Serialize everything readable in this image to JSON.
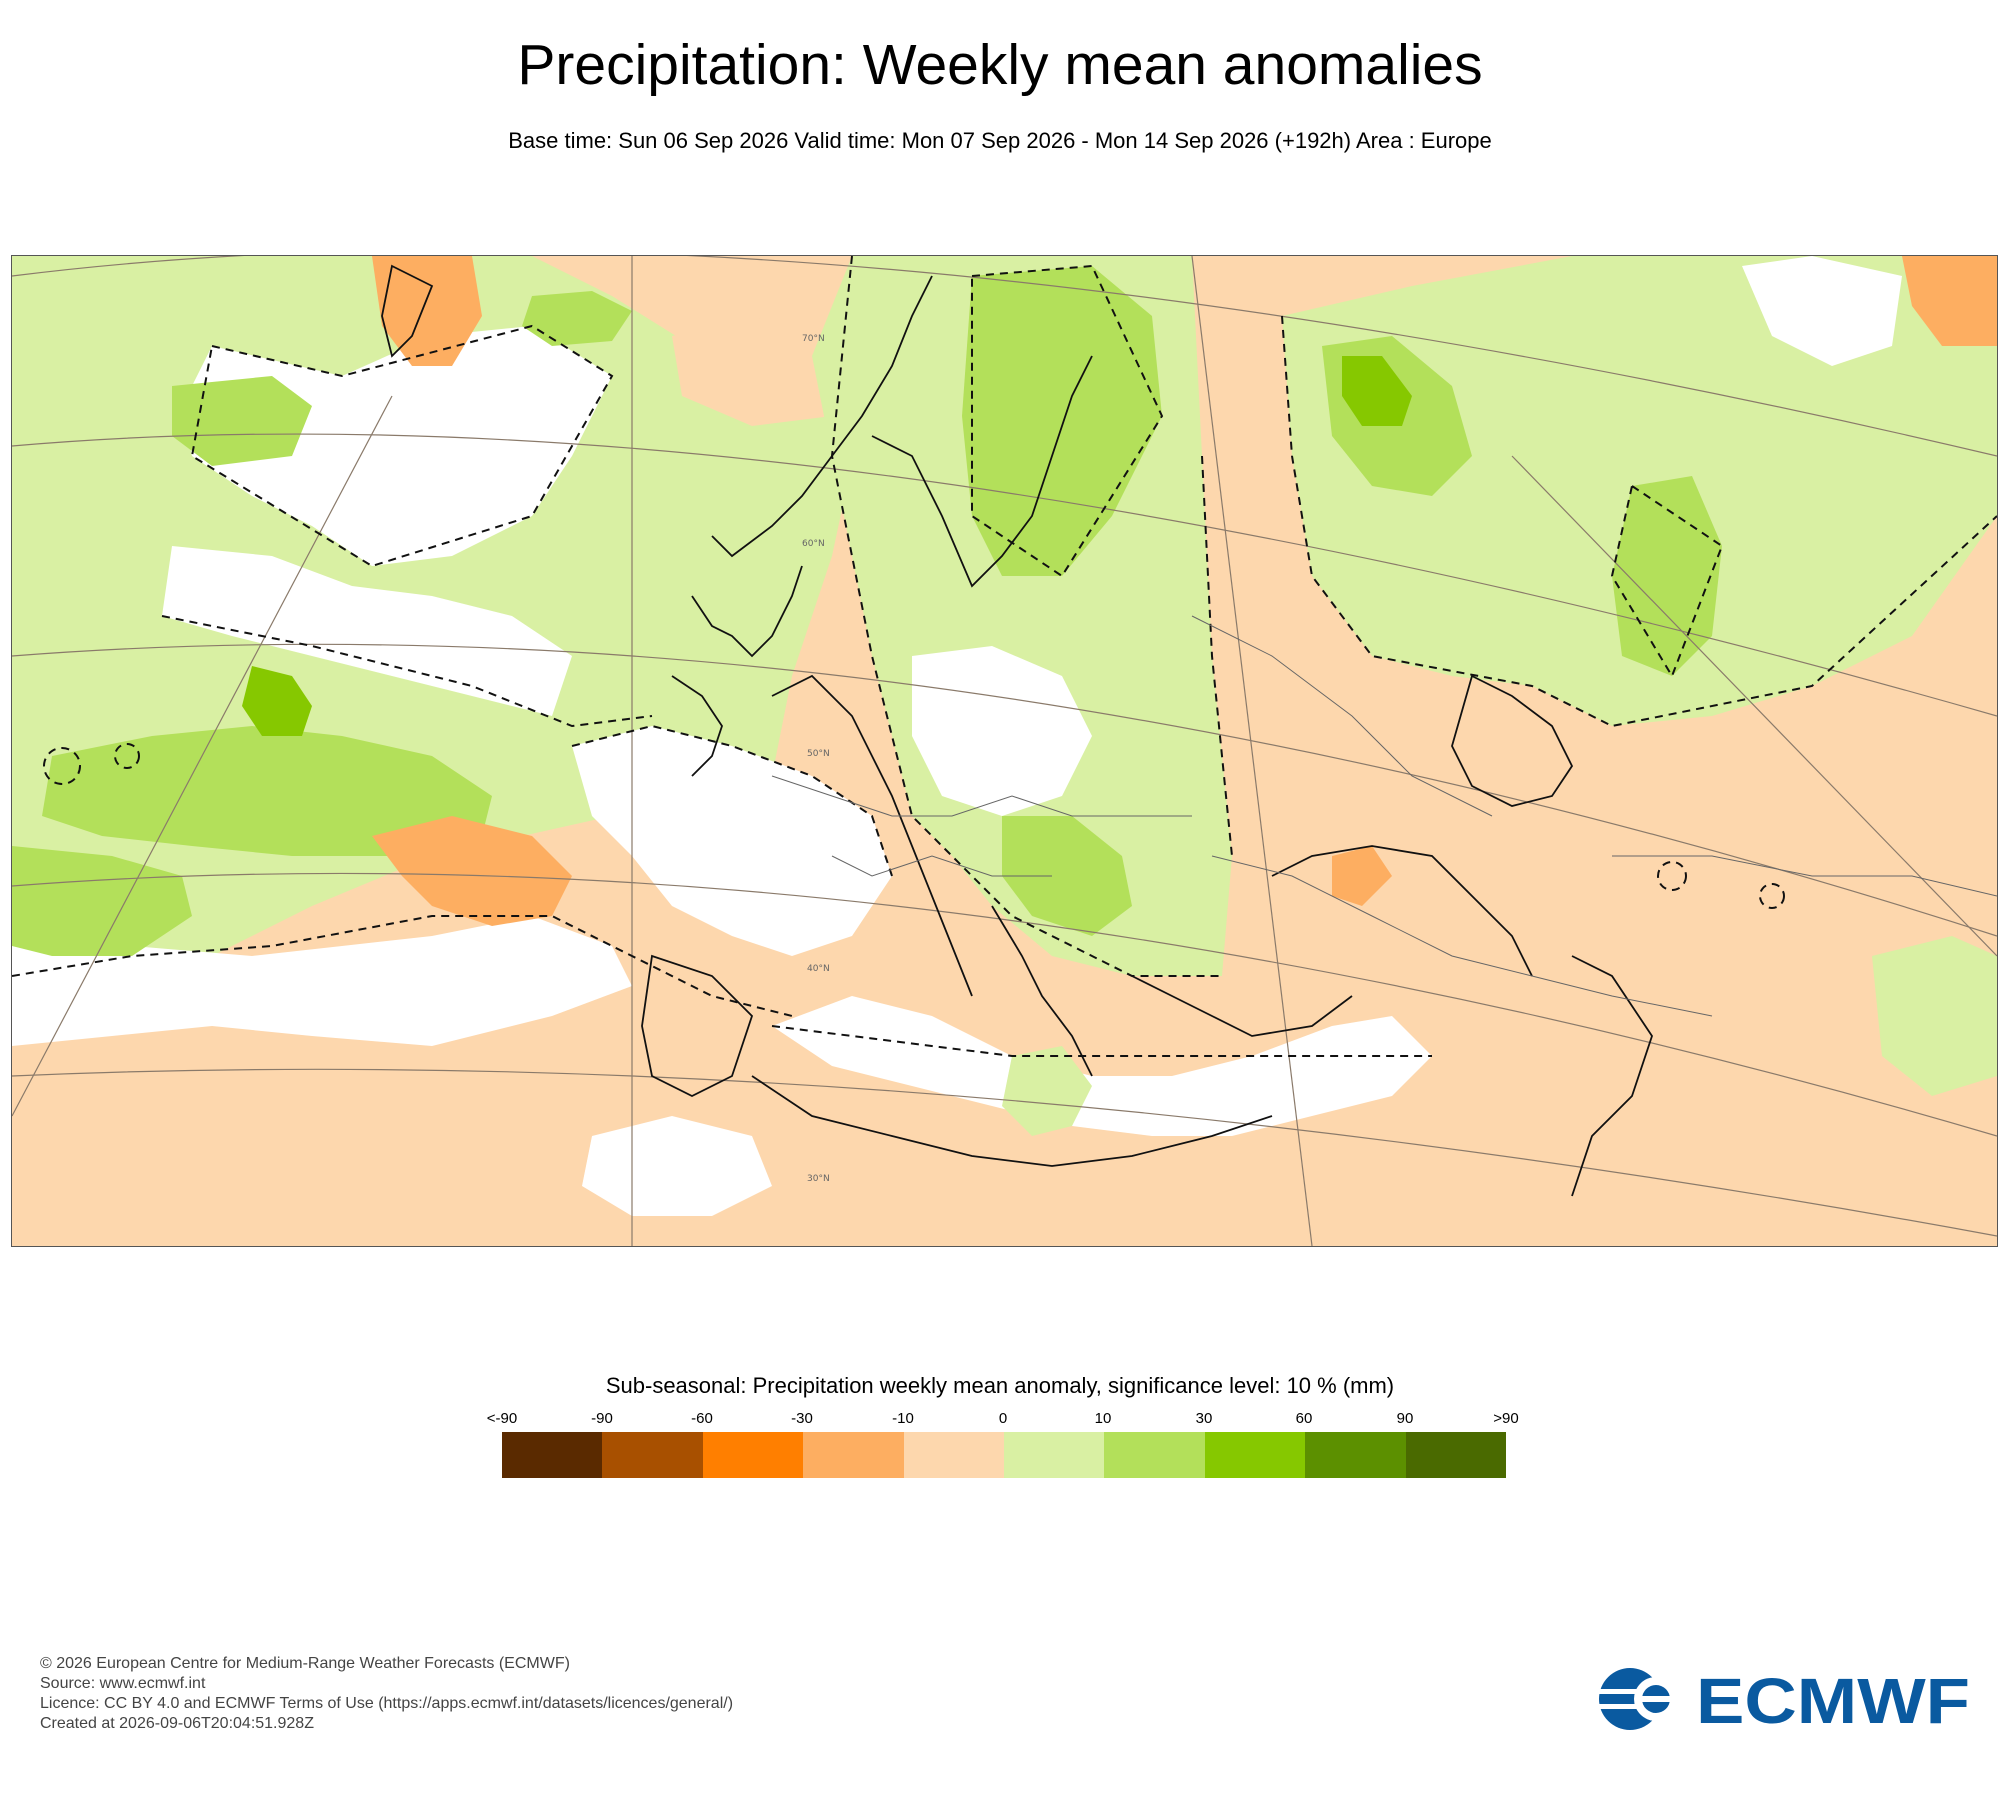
{
  "title": "Precipitation: Weekly mean anomalies",
  "subtitle": "Base time: Sun 06 Sep 2026 Valid time: Mon 07 Sep 2026 - Mon 14 Sep 2026 (+192h) Area : Europe",
  "map": {
    "area": "Europe",
    "latitude_labels": [
      "70°N",
      "60°N",
      "50°N",
      "40°N",
      "30°N"
    ],
    "colors": {
      "white": "#ffffff",
      "wet_light": "#d9f0a3",
      "wet_medium": "#b3e05a",
      "wet_strong": "#86c800",
      "dry_light": "#fdd7ad",
      "dry_medium": "#fdae61",
      "coast": "#111111",
      "graticule": "#8a7a6a",
      "dashed_contour": "#111111"
    }
  },
  "legend": {
    "title": "Sub-seasonal: Precipitation weekly mean anomaly, significance level: 10 % (mm)",
    "labels": [
      "<-90",
      "-90",
      "-60",
      "-30",
      "-10",
      "0",
      "10",
      "30",
      "60",
      "90",
      ">90"
    ],
    "colors": [
      "#5a2a00",
      "#a85000",
      "#ff7f00",
      "#fdae61",
      "#fdd7ad",
      "#d9f0a3",
      "#b3e05a",
      "#86c800",
      "#5c9000",
      "#4a6a00"
    ]
  },
  "footer": {
    "line1": "© 2026 European Centre for Medium-Range Weather Forecasts (ECMWF)",
    "line2": "Source: www.ecmwf.int",
    "line3": "Licence: CC BY 4.0 and ECMWF Terms of Use (https://apps.ecmwf.int/datasets/licences/general/)",
    "line4": "Created at 2026-09-06T20:04:51.928Z"
  },
  "logo": {
    "text": "ECMWF",
    "color": "#0a5aa0"
  }
}
